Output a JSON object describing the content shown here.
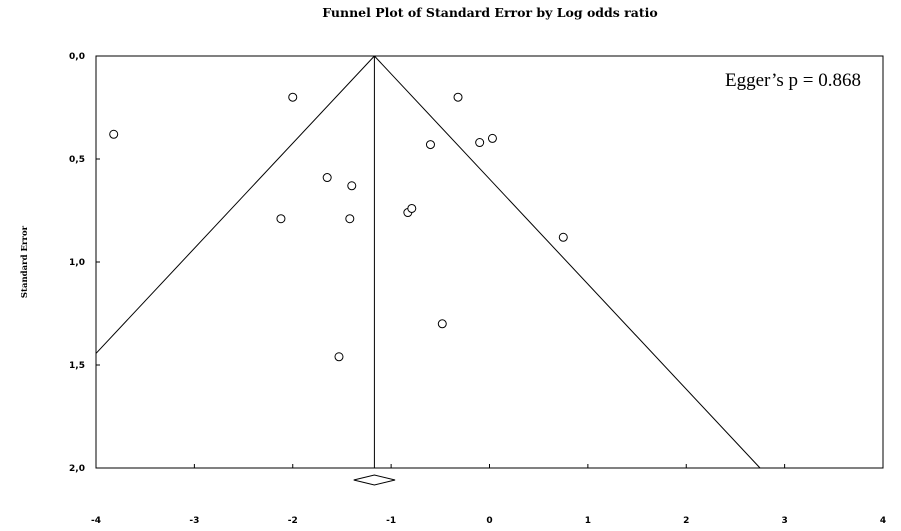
{
  "chart_data": {
    "type": "scatter",
    "title": "Funnel Plot of Standard Error by Log odds ratio",
    "xlabel": "",
    "ylabel": "Standard Error",
    "xlim": [
      -4,
      4
    ],
    "ylim": [
      0,
      2
    ],
    "y_inverted": true,
    "grid": false,
    "x_ticks": [
      {
        "value": -4,
        "label": "-4"
      },
      {
        "value": -3,
        "label": "-3"
      },
      {
        "value": -2,
        "label": "-2"
      },
      {
        "value": -1,
        "label": "-1"
      },
      {
        "value": 0,
        "label": "0"
      },
      {
        "value": 1,
        "label": "1"
      },
      {
        "value": 2,
        "label": "2"
      },
      {
        "value": 3,
        "label": "3"
      },
      {
        "value": 4,
        "label": "4"
      }
    ],
    "y_ticks": [
      {
        "value": 0,
        "label": "0,0"
      },
      {
        "value": 0.5,
        "label": "0,5"
      },
      {
        "value": 1,
        "label": "1,0"
      },
      {
        "value": 1.5,
        "label": "1,5"
      },
      {
        "value": 2,
        "label": "2,0"
      }
    ],
    "annotation": "Egger’s p = 0.868",
    "pooled_estimate": -1.17,
    "funnel_z": 1.96,
    "diamond": {
      "center": -1.17,
      "lower": -1.38,
      "upper": -0.96
    },
    "points": [
      {
        "x": -3.82,
        "y": 0.38
      },
      {
        "x": -2.0,
        "y": 0.2
      },
      {
        "x": -2.12,
        "y": 0.79
      },
      {
        "x": -1.65,
        "y": 0.59
      },
      {
        "x": -1.4,
        "y": 0.63
      },
      {
        "x": -1.42,
        "y": 0.79
      },
      {
        "x": -1.53,
        "y": 1.46
      },
      {
        "x": -0.83,
        "y": 0.76
      },
      {
        "x": -0.79,
        "y": 0.74
      },
      {
        "x": -0.48,
        "y": 1.3
      },
      {
        "x": -0.6,
        "y": 0.43
      },
      {
        "x": -0.32,
        "y": 0.2
      },
      {
        "x": -0.1,
        "y": 0.42
      },
      {
        "x": 0.03,
        "y": 0.4
      },
      {
        "x": 0.75,
        "y": 0.88
      }
    ]
  }
}
